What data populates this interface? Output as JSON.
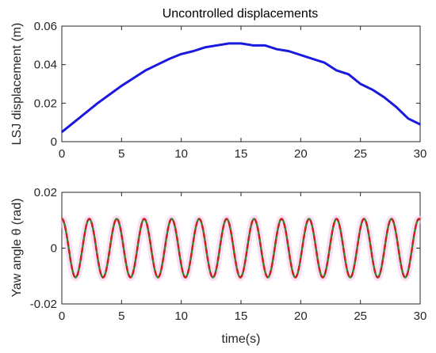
{
  "chart_data": [
    {
      "type": "line",
      "title": "Uncontrolled displacements",
      "xlabel": "",
      "ylabel": "LSJ displacement (m)",
      "xlim": [
        0,
        30
      ],
      "ylim": [
        0,
        0.06
      ],
      "x_ticks": [
        "0",
        "5",
        "10",
        "15",
        "20",
        "25",
        "30"
      ],
      "y_ticks": [
        "0",
        "0.02",
        "0.04",
        "0.06"
      ],
      "grid": false,
      "series": [
        {
          "color": "#1a1adf",
          "x": [
            0,
            1,
            2,
            3,
            4,
            5,
            6,
            7,
            8,
            9,
            10,
            11,
            12,
            13,
            14,
            15,
            16,
            17,
            18,
            19,
            20,
            21,
            22,
            23,
            24,
            25,
            26,
            27,
            28,
            29,
            30
          ],
          "y": [
            0.005,
            0.01,
            0.015,
            0.02,
            0.0245,
            0.029,
            0.033,
            0.037,
            0.04,
            0.043,
            0.0455,
            0.047,
            0.049,
            0.05,
            0.051,
            0.051,
            0.05,
            0.05,
            0.048,
            0.047,
            0.045,
            0.043,
            0.041,
            0.037,
            0.035,
            0.03,
            0.027,
            0.023,
            0.018,
            0.012,
            0.009
          ]
        }
      ]
    },
    {
      "type": "line",
      "title": "",
      "xlabel": "time(s)",
      "ylabel": "Yaw angle θ (rad)",
      "xlim": [
        0,
        30
      ],
      "ylim": [
        -0.02,
        0.02
      ],
      "x_ticks": [
        "0",
        "5",
        "10",
        "15",
        "20",
        "25",
        "30"
      ],
      "y_ticks": [
        "-0.02",
        "0",
        "0.02"
      ],
      "grid": false,
      "oscillation": {
        "amplitude": 0.0105,
        "period": 2.3,
        "phase_start": "peak"
      },
      "series": [
        {
          "color": "#2e8b2e",
          "style": "solid"
        },
        {
          "color": "#d41a1a",
          "style": "dashed"
        }
      ]
    }
  ]
}
